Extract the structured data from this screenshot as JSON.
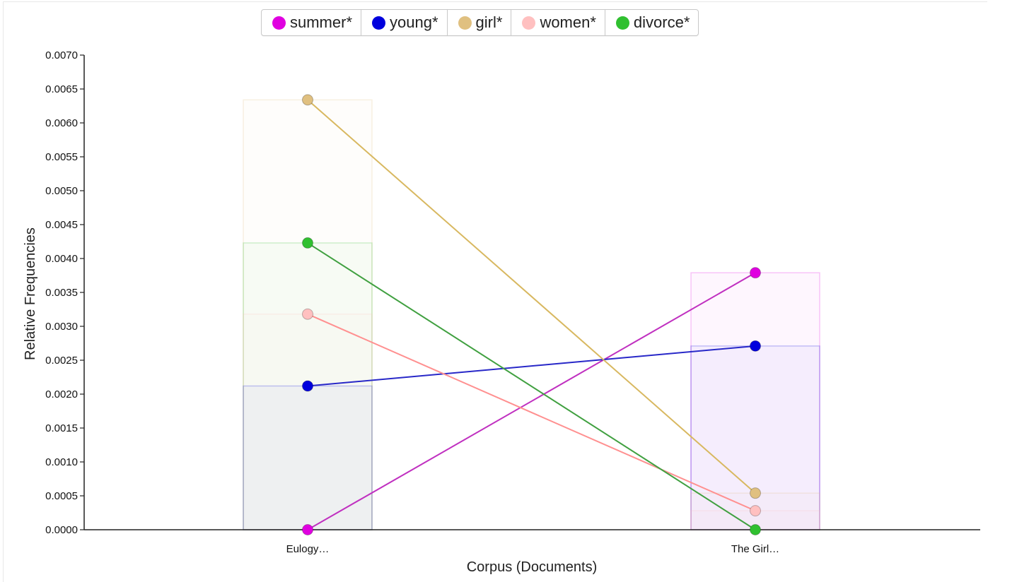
{
  "chart_data": {
    "type": "line",
    "xlabel": "Corpus (Documents)",
    "ylabel": "Relative Frequencies",
    "categories": [
      "Eulogy…",
      "The Girl…"
    ],
    "ylim": [
      0,
      0.007
    ],
    "yticks": [
      "0.0000",
      "0.0005",
      "0.0010",
      "0.0015",
      "0.0020",
      "0.0025",
      "0.0030",
      "0.0035",
      "0.0040",
      "0.0045",
      "0.0050",
      "0.0055",
      "0.0060",
      "0.0065",
      "0.0070"
    ],
    "legend_position": "top-center",
    "grid": false,
    "series": [
      {
        "name": "summer*",
        "color": "#e000e0",
        "line_color": "#c030c0",
        "values": [
          0.0,
          0.00379
        ]
      },
      {
        "name": "young*",
        "color": "#0000dd",
        "line_color": "#2828c8",
        "values": [
          0.00212,
          0.00271
        ]
      },
      {
        "name": "girl*",
        "color": "#e0c080",
        "line_color": "#d8b860",
        "values": [
          0.00634,
          0.00054
        ]
      },
      {
        "name": "women*",
        "color": "#ffc0c0",
        "line_color": "#ff9090",
        "values": [
          0.00318,
          0.00028
        ]
      },
      {
        "name": "divorce*",
        "color": "#30c030",
        "line_color": "#40a040",
        "values": [
          0.00423,
          0.0
        ]
      }
    ]
  }
}
